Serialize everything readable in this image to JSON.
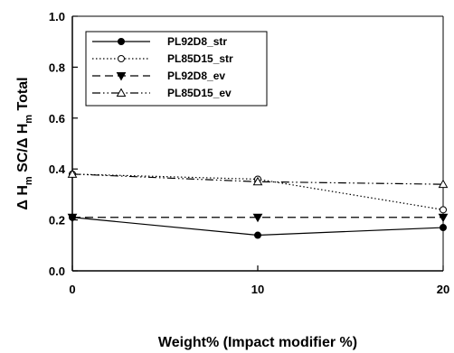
{
  "chart_data": {
    "type": "line",
    "xlabel": "Weight% (Impact modifier %)",
    "ylabel": "Δ Hm SC/Δ Hm Total",
    "ylabel_parts": [
      "Δ H",
      "m",
      " SC/Δ H",
      "m",
      " Total"
    ],
    "xlim": [
      0,
      20
    ],
    "ylim": [
      0.0,
      1.0
    ],
    "x_ticks": [
      0,
      10,
      20
    ],
    "x_tick_labels": [
      "0",
      "10",
      "20"
    ],
    "y_ticks": [
      0.0,
      0.2,
      0.4,
      0.6,
      0.8,
      1.0
    ],
    "y_tick_labels": [
      "0.0",
      "0.2",
      "0.4",
      "0.6",
      "0.8",
      "1.0"
    ],
    "grid": false,
    "legend_position": "top-left",
    "x": [
      0,
      10,
      20
    ],
    "series": [
      {
        "name": "PL92D8_str",
        "values": [
          0.21,
          0.14,
          0.17
        ],
        "line": "solid",
        "marker": "filled-circle"
      },
      {
        "name": "PL85D15_str",
        "values": [
          0.38,
          0.36,
          0.24
        ],
        "line": "dotted",
        "marker": "open-circle"
      },
      {
        "name": "PL92D8_ev",
        "values": [
          0.21,
          0.21,
          0.21
        ],
        "line": "dashed",
        "marker": "filled-triangle-down"
      },
      {
        "name": "PL85D15_ev",
        "values": [
          0.38,
          0.35,
          0.34
        ],
        "line": "dash-dot-dot",
        "marker": "open-triangle-up"
      }
    ]
  }
}
